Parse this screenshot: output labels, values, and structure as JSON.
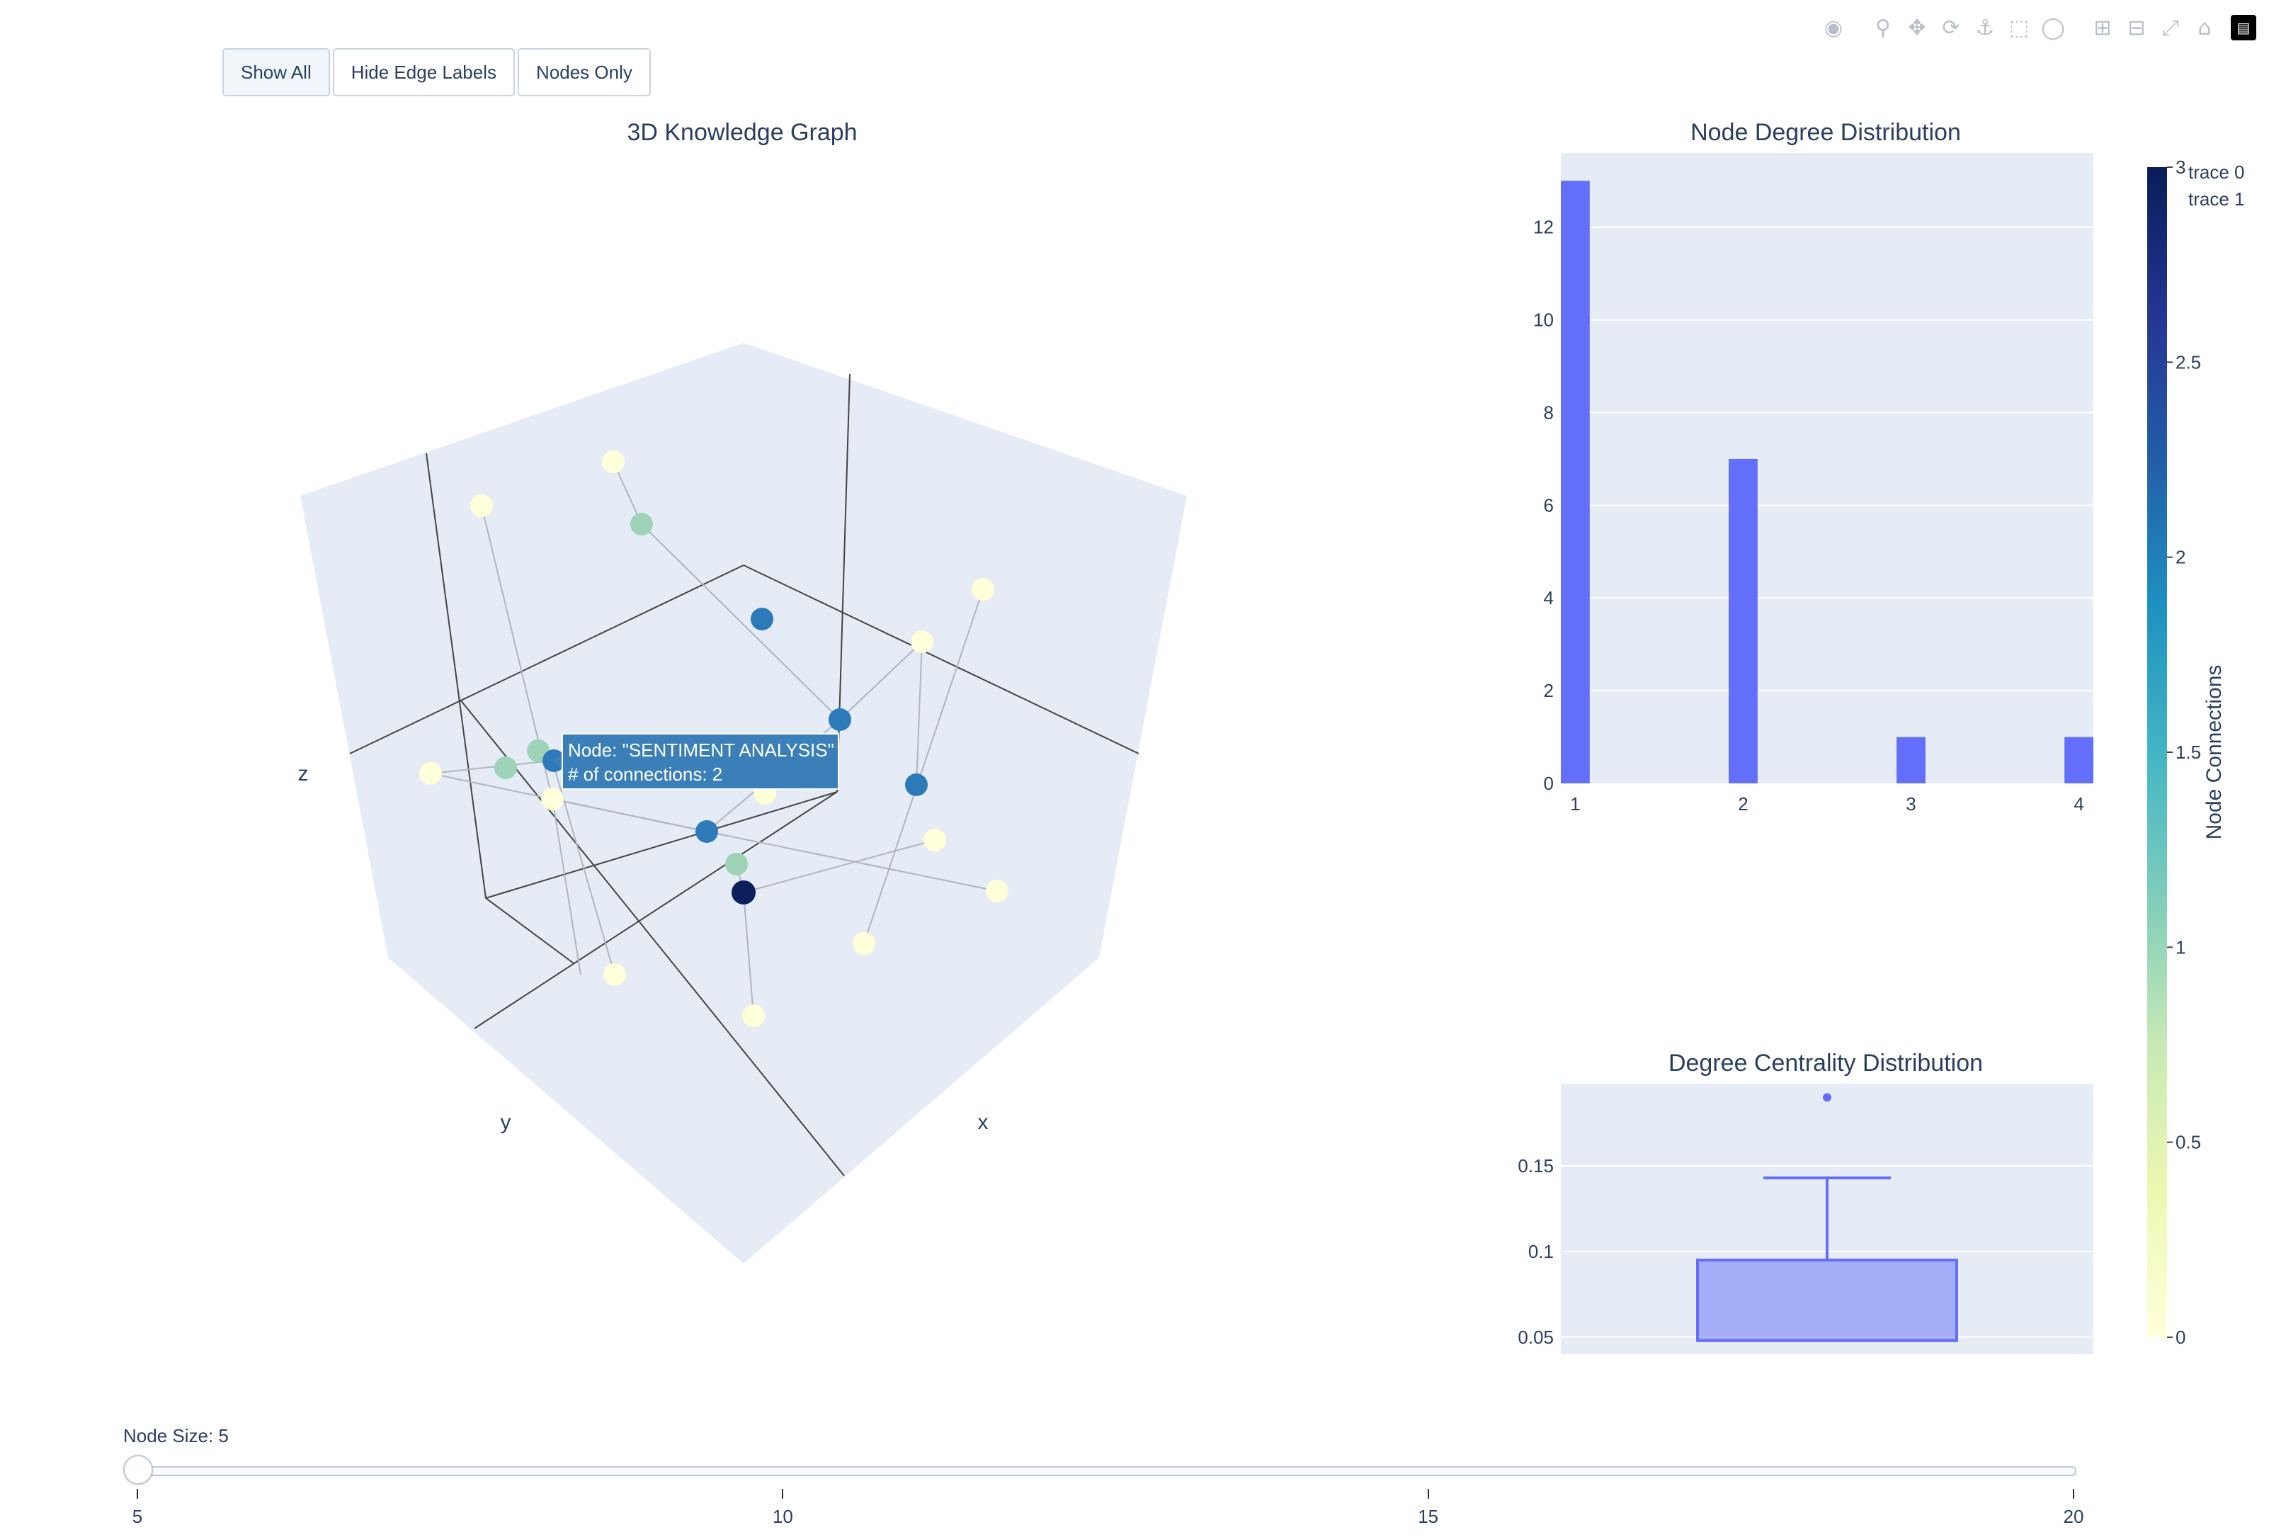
{
  "modebar": {
    "icons": [
      "camera-icon",
      "zoom-icon",
      "pan-icon",
      "orbit-icon",
      "turntable-icon",
      "box-select-icon",
      "lasso-icon",
      "zoom-in-icon",
      "zoom-out-icon",
      "autoscale-icon",
      "home-icon",
      "plotly-logo-icon"
    ]
  },
  "buttons": [
    {
      "label": "Show All",
      "active": true
    },
    {
      "label": "Hide Edge Labels",
      "active": false
    },
    {
      "label": "Nodes Only",
      "active": false
    }
  ],
  "graph3d": {
    "title": "3D Knowledge Graph",
    "axis_labels": {
      "x": "x",
      "y": "y",
      "z": "z"
    },
    "tooltip": {
      "line1": "Node: \"SENTIMENT ANALYSIS\"",
      "line2": "# of connections: 2"
    }
  },
  "colorbar": {
    "title": "Node Connections",
    "ticks": [
      "3",
      "2.5",
      "2",
      "1.5",
      "1",
      "0.5",
      "0"
    ],
    "colors": [
      "#081d58",
      "#253494",
      "#225ea8",
      "#1d91c0",
      "#41b6c4",
      "#7fcdbb",
      "#c7e9b4",
      "#edf8b1",
      "#ffffd9"
    ]
  },
  "legend": {
    "items": [
      "trace 0",
      "trace 1"
    ]
  },
  "slider": {
    "label": "Node Size: 5",
    "min": 5,
    "max": 20,
    "value": 5,
    "ticks": [
      "5",
      "10",
      "15",
      "20"
    ]
  },
  "chart_data": [
    {
      "type": "bar",
      "title": "Node Degree Distribution",
      "categories": [
        "1",
        "2",
        "3",
        "4"
      ],
      "values": [
        13,
        7,
        1,
        1
      ],
      "ylim": [
        0,
        13.6
      ],
      "yticks": [
        "0",
        "2",
        "4",
        "6",
        "8",
        "10",
        "12"
      ],
      "bar_color": "#636efa",
      "grid": true
    },
    {
      "type": "box",
      "title": "Degree Centrality Distribution",
      "min": 0.048,
      "q1": 0.048,
      "median": 0.048,
      "q3": 0.095,
      "upper_whisker": 0.143,
      "outliers": [
        0.19
      ],
      "ylim": [
        0.04,
        0.198
      ],
      "yticks": [
        "0.05",
        "0.1",
        "0.15"
      ],
      "color": "#636efa",
      "grid": true
    }
  ]
}
